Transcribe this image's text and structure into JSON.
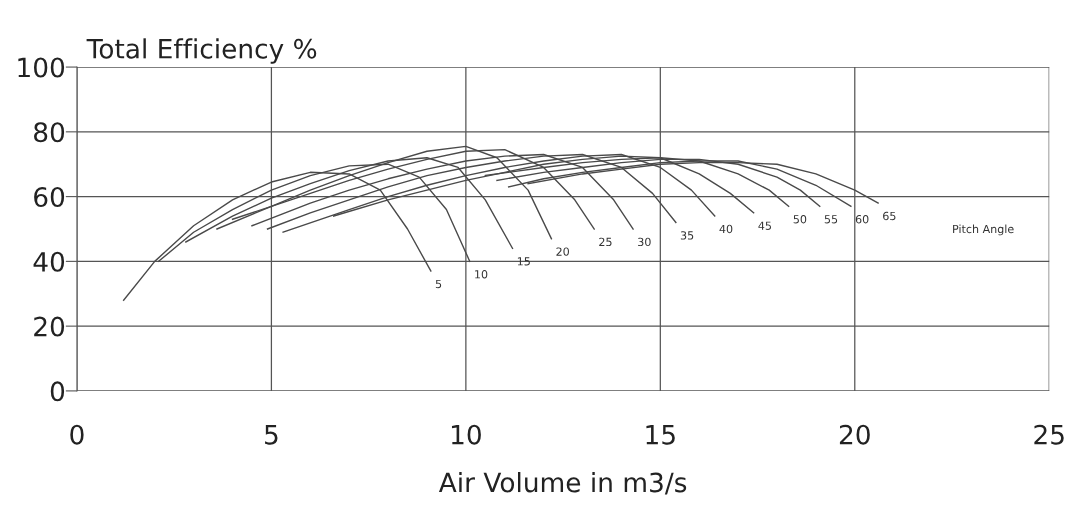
{
  "chart_data": {
    "type": "line",
    "ylabel": "Total Efficiency %",
    "xlabel": "Air Volume in m3/s",
    "xlim": [
      0,
      25
    ],
    "xticks": [
      0,
      5,
      10,
      15,
      20,
      25
    ],
    "ylim": [
      0,
      100
    ],
    "yticks": [
      0,
      20,
      40,
      60,
      80,
      100
    ],
    "grid": true,
    "series": [
      {
        "name": "5",
        "color": "#4a4a4a",
        "x": [
          1.2,
          2,
          3,
          4,
          5,
          6,
          7,
          7.8,
          8.5,
          9.1
        ],
        "values": [
          28,
          40,
          51,
          59,
          64.5,
          67.5,
          67,
          62,
          50,
          37
        ]
      },
      {
        "name": "10",
        "color": "#4a4a4a",
        "x": [
          2.1,
          3,
          4,
          5,
          6,
          7,
          8,
          8.8,
          9.5,
          10.1
        ],
        "values": [
          40,
          49,
          56,
          62,
          66.5,
          69.5,
          70,
          66,
          56,
          40
        ]
      },
      {
        "name": "15",
        "color": "#4a4a4a",
        "x": [
          2.8,
          4,
          5,
          6,
          7,
          8,
          9,
          9.8,
          10.5,
          11.2
        ],
        "values": [
          46,
          54,
          59.5,
          64,
          68,
          71,
          72,
          69,
          59,
          44
        ]
      },
      {
        "name": "20",
        "color": "#4a4a4a",
        "x": [
          3.6,
          5,
          6,
          7,
          8,
          9,
          10,
          10.8,
          11.6,
          12.2
        ],
        "values": [
          50,
          57,
          62,
          66.5,
          70.5,
          74,
          75.5,
          72,
          62,
          47
        ]
      },
      {
        "name": "25",
        "color": "#4a4a4a",
        "x": [
          4,
          5,
          6,
          7,
          8,
          9,
          10,
          11,
          12,
          12.8,
          13.3
        ],
        "values": [
          53,
          57,
          61,
          65,
          68.5,
          71.5,
          74,
          74.5,
          69,
          59,
          50
        ]
      },
      {
        "name": "30",
        "color": "#4a4a4a",
        "x": [
          4.5,
          6,
          7,
          8,
          9,
          10,
          11,
          12,
          13,
          13.8,
          14.3
        ],
        "values": [
          51,
          58,
          62,
          65.5,
          68.5,
          71,
          72.5,
          73,
          69,
          59,
          50
        ]
      },
      {
        "name": "35",
        "color": "#4a4a4a",
        "x": [
          4.9,
          6,
          7,
          8,
          9,
          10,
          11,
          12,
          13,
          14,
          14.8,
          15.4
        ],
        "values": [
          50,
          55,
          59,
          63,
          66.5,
          69,
          71,
          72.5,
          73,
          69,
          61,
          52
        ]
      },
      {
        "name": "40",
        "color": "#4a4a4a",
        "x": [
          5.3,
          7,
          8,
          9,
          10,
          11,
          12,
          13,
          14,
          15,
          15.8,
          16.4
        ],
        "values": [
          49,
          56,
          60,
          63.5,
          66.5,
          69,
          71,
          72.5,
          73,
          69,
          62,
          54
        ]
      },
      {
        "name": "45",
        "color": "#4a4a4a",
        "x": [
          6.6,
          8,
          9,
          10,
          11,
          12,
          13,
          14,
          15,
          16,
          16.8,
          17.4
        ],
        "values": [
          54,
          59,
          62,
          65,
          67.5,
          70,
          71.5,
          72.5,
          72,
          67,
          61,
          55
        ]
      },
      {
        "name": "50",
        "color": "#4a4a4a",
        "x": [
          10.5,
          12,
          13,
          14,
          15,
          16,
          17,
          17.8,
          18.3
        ],
        "values": [
          66.5,
          69,
          70.5,
          71.5,
          72,
          71,
          67,
          62,
          57
        ]
      },
      {
        "name": "55",
        "color": "#4a4a4a",
        "x": [
          10.8,
          12,
          13,
          14,
          15,
          16,
          17,
          18,
          18.6,
          19.1
        ],
        "values": [
          65,
          67.5,
          69,
          70.5,
          71.5,
          71.5,
          70,
          66,
          62,
          57
        ]
      },
      {
        "name": "60",
        "color": "#4a4a4a",
        "x": [
          11.1,
          12,
          13,
          14,
          15,
          16,
          17,
          18,
          19,
          19.9
        ],
        "values": [
          63,
          65.5,
          67.5,
          69,
          70.5,
          71,
          71,
          68.5,
          63.5,
          57
        ]
      },
      {
        "name": "65",
        "color": "#4a4a4a",
        "x": [
          11.6,
          13,
          14,
          15,
          16,
          17,
          18,
          19,
          20,
          20.6
        ],
        "values": [
          64,
          67,
          68.5,
          70,
          70.5,
          70.5,
          70,
          67,
          62,
          58
        ]
      }
    ],
    "annotations": [
      "Pitch Angle"
    ]
  }
}
